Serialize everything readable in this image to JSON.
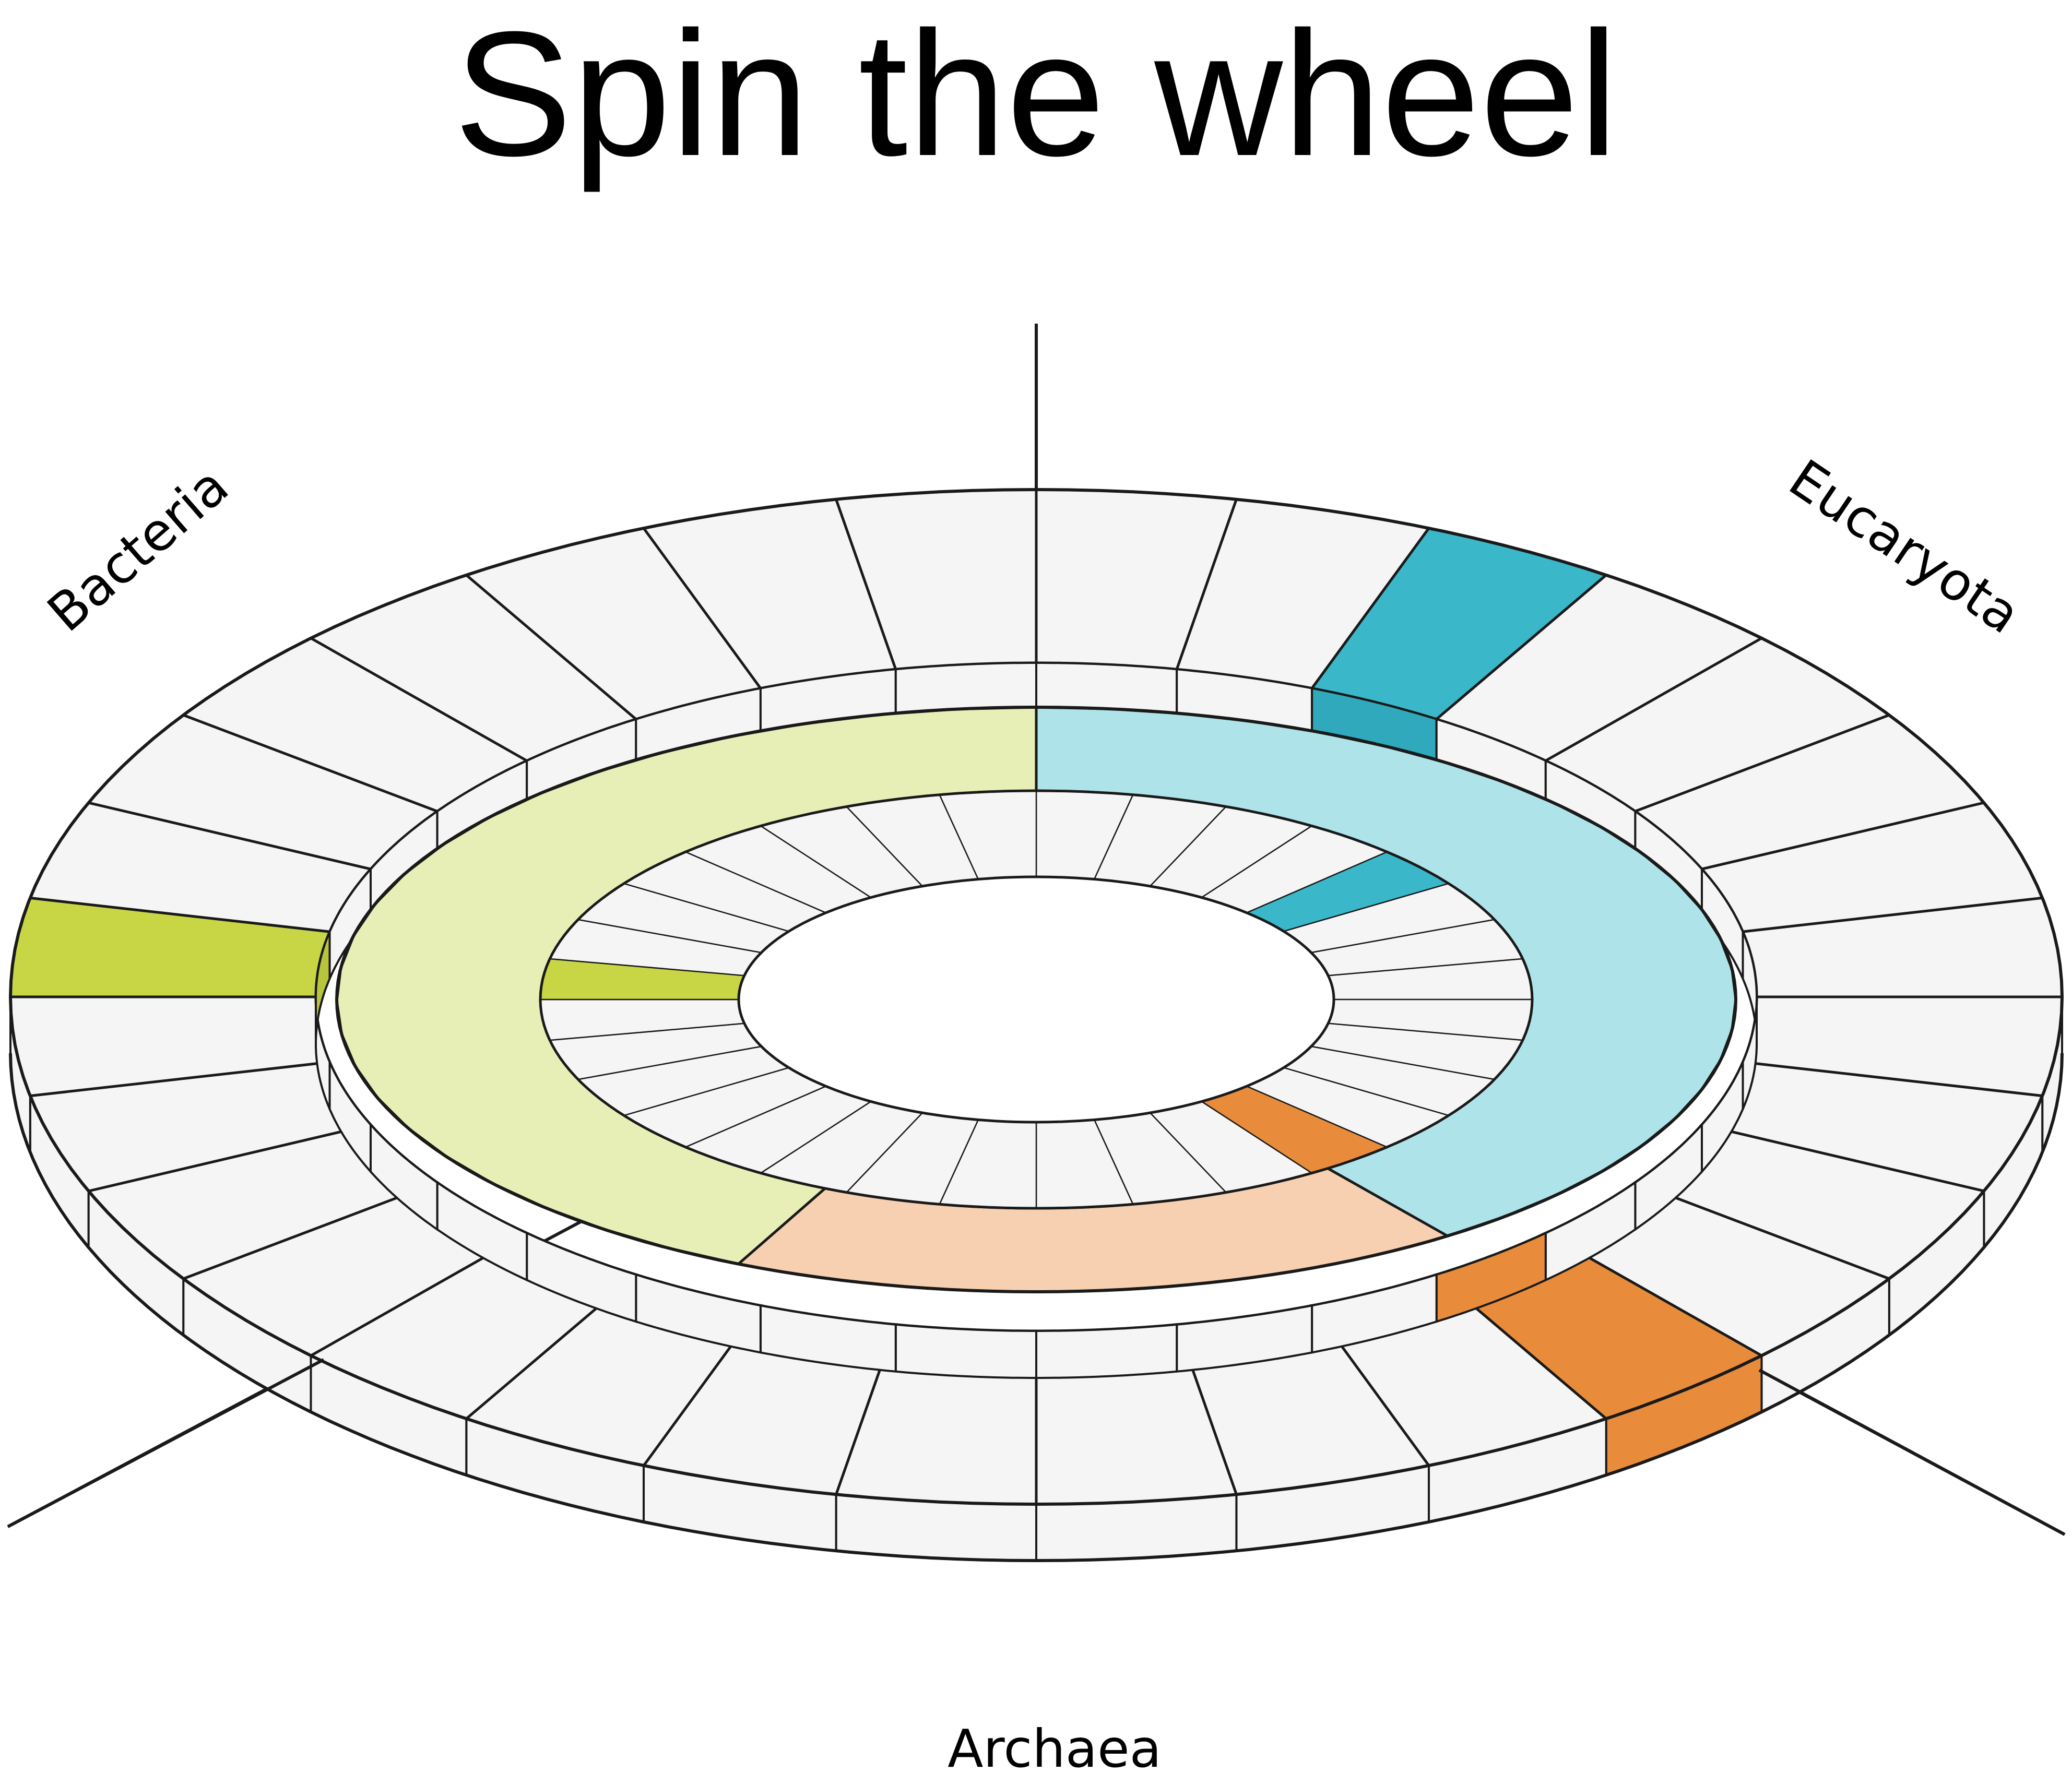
{
  "title": "Spin the wheel",
  "labels": {
    "bacteria": "Bacteria",
    "eucaryota": "Eucaryota",
    "archaea": "Archaea"
  },
  "outer_ring": {
    "segment_count": 32,
    "highlighted": [
      {
        "index": 24,
        "color": "#c8d645",
        "side_color": "#b7c43c"
      },
      {
        "index": 12,
        "color": "#e88c3b",
        "side_color": "#e88c3b"
      },
      {
        "index": 2,
        "color": "#3ab7c9",
        "side_color": "#2fa9bb"
      }
    ]
  },
  "middle_band": [
    {
      "name": "bacteria",
      "color": "#e8efb6"
    },
    {
      "name": "eucaryota",
      "color": "#afe3ea"
    },
    {
      "name": "archaea",
      "color": "#f6d0b0"
    }
  ],
  "inner_ring": {
    "segment_count": 32,
    "highlighted": [
      {
        "index": 24,
        "color": "#c8d645"
      },
      {
        "index": 12,
        "color": "#e88c3b"
      },
      {
        "index": 4,
        "color": "#3ab7c9"
      }
    ]
  },
  "colors": {
    "segment_fill": "#f5f5f5",
    "stroke": "#1a1a1a",
    "background": "#ffffff"
  }
}
